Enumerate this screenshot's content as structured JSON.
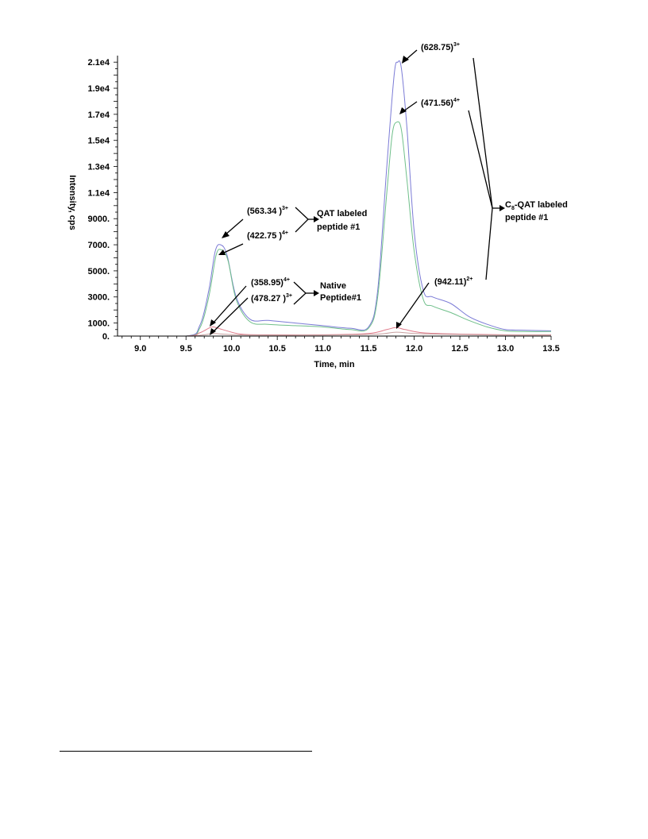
{
  "chart_data": {
    "type": "line",
    "xlabel": "Time, min",
    "ylabel": "Intensity, cps",
    "xlim": [
      8.75,
      13.5
    ],
    "ylim": [
      0,
      21500
    ],
    "x_ticks": [
      "9.0",
      "9.5",
      "10.0",
      "10.5",
      "11.0",
      "11.5",
      "12.0",
      "12.5",
      "13.0",
      "13.5"
    ],
    "x_tick_values": [
      9.0,
      9.5,
      10.0,
      10.5,
      11.0,
      11.5,
      12.0,
      12.5,
      13.0,
      13.5
    ],
    "y_ticks": [
      "0.",
      "1000.",
      "3000.",
      "5000.",
      "7000.",
      "9000.",
      "1.1e4",
      "1.3e4",
      "1.5e4",
      "1.7e4",
      "1.9e4",
      "2.1e4"
    ],
    "y_tick_values": [
      0,
      1000,
      3000,
      5000,
      7000,
      9000,
      11000,
      13000,
      15000,
      17000,
      19000,
      21000
    ],
    "series": [
      {
        "color": "#7b7bd6",
        "x": [
          8.75,
          9.5,
          9.65,
          9.75,
          9.82,
          9.88,
          9.95,
          10.05,
          10.2,
          10.4,
          10.7,
          11.0,
          11.3,
          11.5,
          11.6,
          11.7,
          11.78,
          11.82,
          11.86,
          11.92,
          12.0,
          12.1,
          12.2,
          12.4,
          12.6,
          12.8,
          13.0,
          13.2,
          13.5
        ],
        "y": [
          0,
          0,
          800,
          3500,
          6500,
          7000,
          6200,
          3000,
          1300,
          1200,
          1000,
          800,
          600,
          700,
          3500,
          13000,
          20000,
          21000,
          20500,
          16000,
          8000,
          3500,
          3000,
          2500,
          1500,
          900,
          500,
          450,
          400
        ]
      },
      {
        "color": "#6fbf8a",
        "x": [
          8.75,
          9.5,
          9.65,
          9.75,
          9.83,
          9.89,
          9.96,
          10.05,
          10.2,
          10.4,
          10.7,
          11.0,
          11.3,
          11.5,
          11.6,
          11.7,
          11.76,
          11.81,
          11.86,
          11.92,
          12.0,
          12.1,
          12.2,
          12.4,
          12.6,
          12.8,
          13.0,
          13.2,
          13.5
        ],
        "y": [
          0,
          0,
          600,
          3000,
          6200,
          6600,
          5800,
          2800,
          1100,
          900,
          800,
          700,
          500,
          600,
          3000,
          11000,
          15500,
          16400,
          15800,
          12000,
          6500,
          2800,
          2300,
          1800,
          1200,
          700,
          400,
          350,
          350
        ]
      },
      {
        "color": "#e07a8a",
        "x": [
          8.75,
          9.5,
          9.65,
          9.75,
          9.8,
          9.9,
          10.1,
          10.4,
          11.0,
          11.5,
          11.7,
          11.8,
          11.9,
          12.1,
          12.5,
          13.0,
          13.5
        ],
        "y": [
          0,
          0,
          250,
          600,
          700,
          500,
          150,
          100,
          100,
          200,
          500,
          650,
          500,
          250,
          150,
          100,
          100
        ]
      },
      {
        "color": "#c8a0a0",
        "x": [
          8.75,
          9.5,
          9.7,
          9.8,
          9.9,
          10.2,
          11.0,
          11.6,
          11.8,
          12.0,
          12.5,
          13.0,
          13.5
        ],
        "y": [
          0,
          0,
          100,
          200,
          150,
          80,
          80,
          150,
          300,
          200,
          120,
          80,
          80
        ]
      }
    ],
    "annotations": [
      {
        "label": "(563.34 )",
        "sup": "3+"
      },
      {
        "label": "(422.75 )",
        "sup": "4+"
      },
      {
        "label": "QAT labeled"
      },
      {
        "label": "peptide #1"
      },
      {
        "label": "(358.95)",
        "sup": "4+"
      },
      {
        "label": "(478.27 )",
        "sup": "3+"
      },
      {
        "label": "Native"
      },
      {
        "label": "Peptide#1"
      },
      {
        "label": "(628.75)",
        "sup": "3+"
      },
      {
        "label": "(471.56)",
        "sup": "4+"
      },
      {
        "label": "(942.11)",
        "sup": "2+"
      },
      {
        "label": "C",
        "sub": "8",
        "rest": "-QAT labeled"
      },
      {
        "label": "peptide #1"
      }
    ]
  }
}
